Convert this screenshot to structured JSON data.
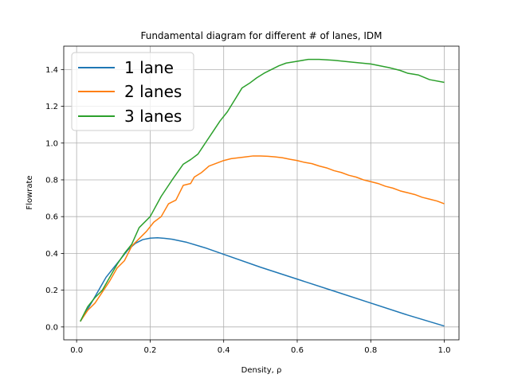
{
  "chart_data": {
    "type": "line",
    "title": "Fundamental diagram for different # of lanes, IDM",
    "xlabel": "Density, ρ",
    "ylabel": "Flowrate",
    "xlim": [
      -0.035,
      1.04
    ],
    "ylim": [
      -0.07,
      1.527
    ],
    "xticks": [
      0.0,
      0.2,
      0.4,
      0.6,
      0.8,
      1.0
    ],
    "xtick_labels": [
      "0.0",
      "0.2",
      "0.4",
      "0.6",
      "0.8",
      "1.0"
    ],
    "yticks": [
      0.0,
      0.2,
      0.4,
      0.6,
      0.8,
      1.0,
      1.2,
      1.4
    ],
    "ytick_labels": [
      "0.0",
      "0.2",
      "0.4",
      "0.6",
      "0.8",
      "1.0",
      "1.2",
      "1.4"
    ],
    "grid": true,
    "legend": "upper-left",
    "series": [
      {
        "name": "1 lane",
        "color": "#1f77b4",
        "x": [
          0.01,
          0.04,
          0.06,
          0.08,
          0.1,
          0.12,
          0.14,
          0.16,
          0.18,
          0.2,
          0.22,
          0.24,
          0.26,
          0.3,
          0.35,
          0.4,
          0.5,
          0.6,
          0.7,
          0.8,
          0.9,
          1.0
        ],
        "y": [
          0.03,
          0.13,
          0.2,
          0.27,
          0.32,
          0.37,
          0.42,
          0.455,
          0.475,
          0.483,
          0.485,
          0.482,
          0.477,
          0.46,
          0.43,
          0.395,
          0.325,
          0.26,
          0.195,
          0.13,
          0.065,
          0.005
        ]
      },
      {
        "name": "2 lanes",
        "color": "#ff7f0e",
        "x": [
          0.01,
          0.03,
          0.05,
          0.07,
          0.09,
          0.11,
          0.13,
          0.15,
          0.17,
          0.19,
          0.21,
          0.23,
          0.25,
          0.27,
          0.29,
          0.31,
          0.32,
          0.34,
          0.36,
          0.38,
          0.4,
          0.42,
          0.44,
          0.46,
          0.48,
          0.5,
          0.52,
          0.54,
          0.56,
          0.58,
          0.6,
          0.62,
          0.64,
          0.66,
          0.68,
          0.7,
          0.72,
          0.74,
          0.76,
          0.78,
          0.8,
          0.82,
          0.84,
          0.86,
          0.88,
          0.9,
          0.92,
          0.94,
          0.96,
          0.98,
          1.0
        ],
        "y": [
          0.03,
          0.09,
          0.13,
          0.19,
          0.25,
          0.32,
          0.36,
          0.44,
          0.48,
          0.52,
          0.57,
          0.6,
          0.67,
          0.69,
          0.77,
          0.78,
          0.815,
          0.84,
          0.875,
          0.89,
          0.905,
          0.915,
          0.92,
          0.925,
          0.93,
          0.93,
          0.928,
          0.925,
          0.92,
          0.912,
          0.905,
          0.895,
          0.888,
          0.875,
          0.865,
          0.85,
          0.84,
          0.825,
          0.815,
          0.8,
          0.79,
          0.78,
          0.765,
          0.755,
          0.74,
          0.73,
          0.72,
          0.705,
          0.695,
          0.685,
          0.67
        ]
      },
      {
        "name": "3 lanes",
        "color": "#2ca02c",
        "x": [
          0.01,
          0.03,
          0.05,
          0.07,
          0.09,
          0.11,
          0.13,
          0.15,
          0.17,
          0.2,
          0.23,
          0.26,
          0.29,
          0.31,
          0.33,
          0.35,
          0.37,
          0.39,
          0.41,
          0.43,
          0.45,
          0.47,
          0.49,
          0.51,
          0.53,
          0.55,
          0.57,
          0.6,
          0.63,
          0.66,
          0.7,
          0.75,
          0.8,
          0.85,
          0.88,
          0.9,
          0.93,
          0.96,
          1.0
        ],
        "y": [
          0.03,
          0.11,
          0.16,
          0.2,
          0.27,
          0.34,
          0.4,
          0.45,
          0.54,
          0.6,
          0.71,
          0.8,
          0.885,
          0.91,
          0.94,
          1.0,
          1.06,
          1.12,
          1.17,
          1.235,
          1.3,
          1.325,
          1.355,
          1.38,
          1.4,
          1.42,
          1.435,
          1.445,
          1.455,
          1.455,
          1.45,
          1.44,
          1.43,
          1.41,
          1.395,
          1.38,
          1.37,
          1.345,
          1.33
        ]
      }
    ]
  }
}
